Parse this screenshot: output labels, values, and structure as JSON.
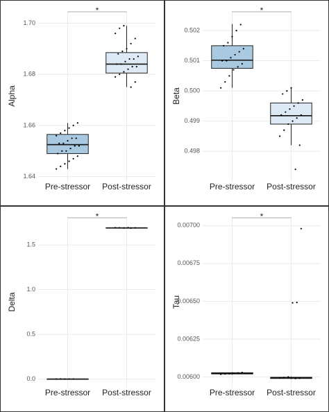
{
  "chart_data": [
    {
      "type": "box",
      "ylabel": "Alpha",
      "annotation": "*",
      "categories": [
        "Pre-stressor",
        "Post-stressor"
      ],
      "colors": [
        "#a9c9e1",
        "#dde9f5"
      ],
      "ylim": [
        1.638,
        1.705
      ],
      "yticks": [
        1.64,
        1.66,
        1.68,
        {
          "value": 1.7,
          "label": "1.70"
        }
      ],
      "grid": true,
      "boxes": [
        {
          "whislo": 1.643,
          "q1": 1.649,
          "med": 1.6525,
          "q3": 1.6565,
          "whishi": 1.661
        },
        {
          "whislo": 1.675,
          "q1": 1.6805,
          "med": 1.684,
          "q3": 1.6885,
          "whishi": 1.699
        }
      ],
      "points": [
        [
          1.643,
          1.644,
          1.645,
          1.646,
          1.647,
          1.648,
          1.649,
          1.65,
          1.65,
          1.651,
          1.652,
          1.652,
          1.653,
          1.653,
          1.654,
          1.655,
          1.655,
          1.656,
          1.657,
          1.658,
          1.659,
          1.66,
          1.661
        ],
        [
          1.675,
          1.677,
          1.679,
          1.68,
          1.681,
          1.682,
          1.683,
          1.683,
          1.684,
          1.684,
          1.685,
          1.686,
          1.686,
          1.687,
          1.688,
          1.689,
          1.69,
          1.692,
          1.694,
          1.696,
          1.698,
          1.699
        ]
      ]
    },
    {
      "type": "box",
      "ylabel": "Beta",
      "annotation": "*",
      "categories": [
        "Pre-stressor",
        "Post-stressor"
      ],
      "colors": [
        "#a9c9e1",
        "#dde9f5"
      ],
      "ylim": [
        0.49699,
        0.50267
      ],
      "yticks": [
        0.498,
        0.499,
        {
          "value": 0.5,
          "label": "0.500"
        },
        0.501,
        0.502
      ],
      "grid": true,
      "boxes": [
        {
          "whislo": 0.5001,
          "q1": 0.50075,
          "med": 0.50102,
          "q3": 0.5015,
          "whishi": 0.50222
        },
        {
          "whislo": 0.4982,
          "q1": 0.4989,
          "med": 0.49918,
          "q3": 0.4996,
          "whishi": 0.5001
        }
      ],
      "points": [
        [
          0.5001,
          0.5003,
          0.5005,
          0.5007,
          0.5008,
          0.5009,
          0.501,
          0.501,
          0.5011,
          0.5012,
          0.5013,
          0.5014,
          0.5015,
          0.5016,
          0.5018,
          0.502,
          0.5022
        ],
        [
          0.4974,
          0.4982,
          0.4985,
          0.4987,
          0.4989,
          0.499,
          0.4991,
          0.4992,
          0.4992,
          0.4993,
          0.4994,
          0.4995,
          0.4996,
          0.4997,
          0.4999,
          0.5,
          0.5001
        ]
      ]
    },
    {
      "type": "box",
      "ylabel": "Delta",
      "annotation": "*",
      "categories": [
        "Pre-stressor",
        "Post-stressor"
      ],
      "colors": [
        "#a9c9e1",
        "#dde9f5"
      ],
      "ylim": [
        -0.096,
        1.819
      ],
      "yticks": [
        {
          "value": 0,
          "label": "0.0"
        },
        0.5,
        {
          "value": 1,
          "label": "1.0"
        },
        1.5
      ],
      "grid": true,
      "boxes": [
        {
          "whislo": 0,
          "q1": 0.0008,
          "med": 0.001,
          "q3": 0.0015,
          "whishi": 0.003
        },
        {
          "whislo": 1.685,
          "q1": 1.688,
          "med": 1.69,
          "q3": 1.692,
          "whishi": 1.695
        }
      ],
      "points": [
        [
          0.001,
          0.002,
          0.001,
          0.0015,
          0.001
        ],
        [
          1.688,
          1.69,
          1.692,
          1.691,
          1.689,
          1.693
        ]
      ]
    },
    {
      "type": "box",
      "ylabel": "Tau",
      "annotation": "*",
      "categories": [
        "Pre-stressor",
        "Post-stressor"
      ],
      "colors": [
        "#a9c9e1",
        "#dde9f5"
      ],
      "ylim": [
        0.005929,
        0.007061
      ],
      "yticks": [
        {
          "value": 0.006,
          "label": "0.00600"
        },
        {
          "value": 0.00625,
          "label": "0.00625"
        },
        {
          "value": 0.0065,
          "label": "0.00650"
        },
        {
          "value": 0.00675,
          "label": "0.00675"
        },
        {
          "value": 0.007,
          "label": "0.00700"
        }
      ],
      "grid": true,
      "boxes": [
        {
          "whislo": 0.006015,
          "q1": 0.00602,
          "med": 0.006024,
          "q3": 0.006028,
          "whishi": 0.006032
        },
        {
          "whislo": 0.005985,
          "q1": 0.00599,
          "med": 0.005995,
          "q3": 0.005998,
          "whishi": 0.006003
        }
      ],
      "points": [
        [
          0.006018,
          0.00602,
          0.006022,
          0.006025,
          0.006027,
          0.00603
        ],
        [
          0.00599,
          0.005992,
          0.005995,
          0.005997,
          0.006,
          0.00649,
          0.006492,
          0.00698
        ]
      ]
    }
  ]
}
